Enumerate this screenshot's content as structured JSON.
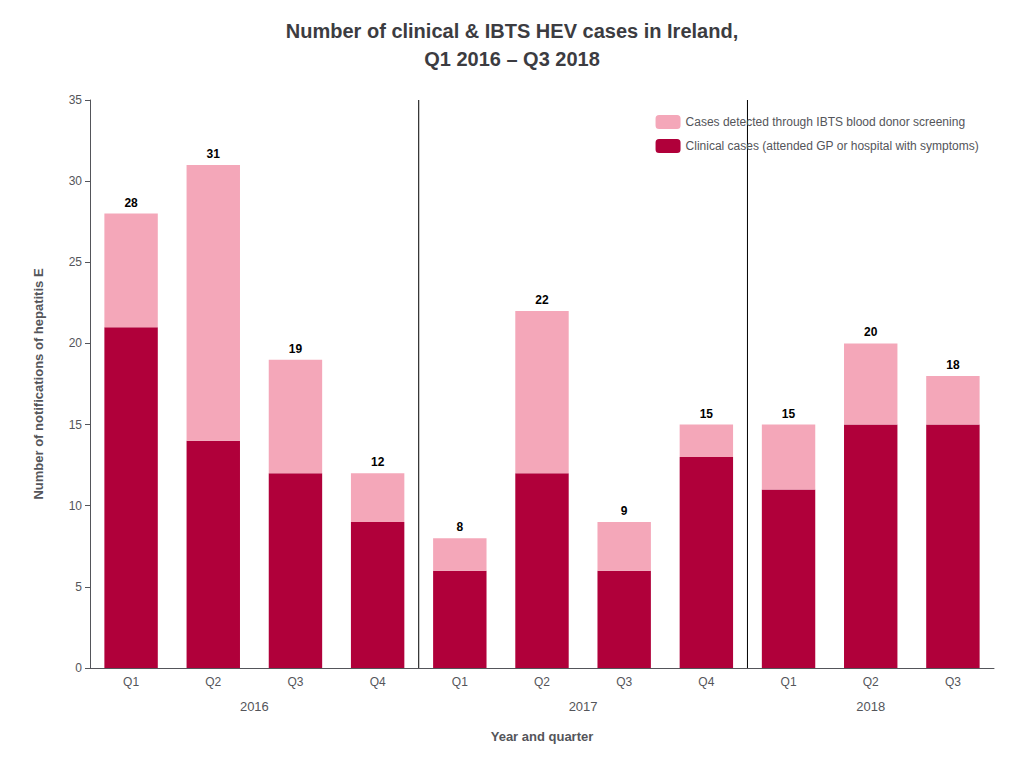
{
  "chart_data": {
    "type": "bar",
    "title": "Number of clinical & IBTS HEV cases in Ireland,\nQ1 2016 – Q3 2018",
    "x_label": "Year and quarter",
    "y_label": "Number of notifications of hepatitis E",
    "categories": [
      "Q1",
      "Q2",
      "Q3",
      "Q4",
      "Q1",
      "Q2",
      "Q3",
      "Q4",
      "Q1",
      "Q2",
      "Q3"
    ],
    "groups": [
      {
        "name": "2016",
        "count": 4
      },
      {
        "name": "2017",
        "count": 4
      },
      {
        "name": "2018",
        "count": 3
      }
    ],
    "series": [
      {
        "name": "Clinical cases (attended GP or hospital with symptoms)",
        "color": "#B0003A",
        "values": [
          21,
          14,
          12,
          9,
          6,
          12,
          6,
          13,
          11,
          15,
          15
        ]
      },
      {
        "name": "Cases detected through IBTS blood donor screening",
        "color": "#F4A7B9",
        "values": [
          7,
          17,
          7,
          3,
          2,
          10,
          3,
          2,
          4,
          5,
          3
        ]
      }
    ],
    "totals": [
      28,
      31,
      19,
      12,
      8,
      22,
      9,
      15,
      15,
      20,
      18
    ],
    "stacked": true,
    "ylim": [
      0,
      35
    ],
    "yticks": [
      0,
      5,
      10,
      15,
      20,
      25,
      30,
      35
    ],
    "grid": false,
    "legend": "upper right"
  }
}
